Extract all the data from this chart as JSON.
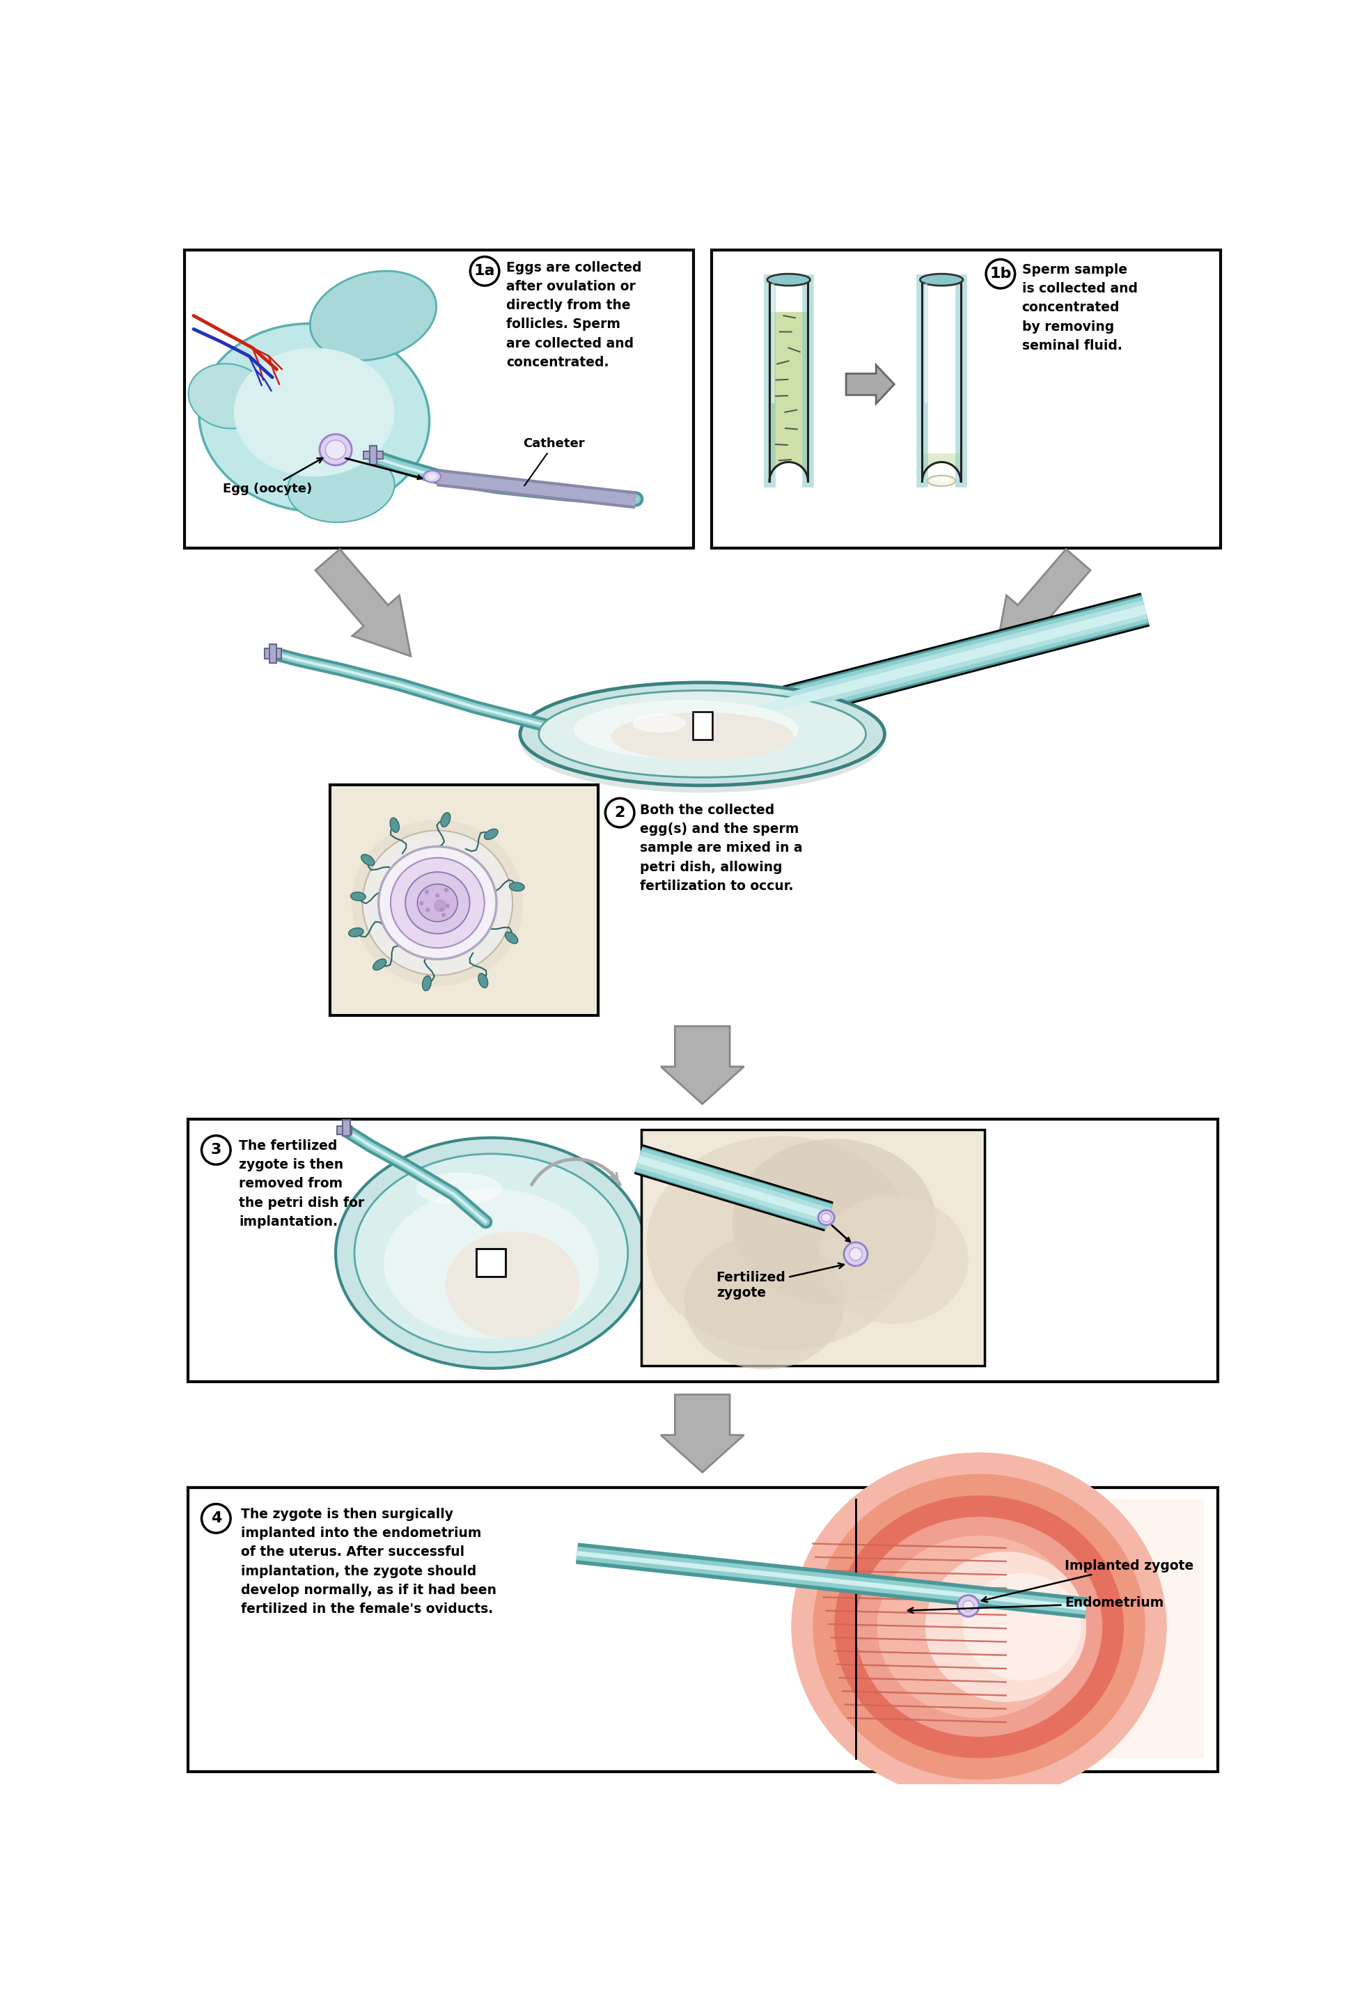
{
  "bg_color": "#ffffff",
  "panel1a_text": "Eggs are collected\nafter ovulation or\ndirectly from the\nfollicles. Sperm\nare collected and\nconcentrated.",
  "panel1b_text": "Sperm sample\nis collected and\nconcentrated\nby removing\nseminal fluid.",
  "panel2_text": "Both the collected\negg(s) and the sperm\nsample are mixed in a\npetri dish, allowing\nfertilization to occur.",
  "panel3_text": "The fertilized\nzygote is then\nremoved from\nthe petri dish for\nimplantation.",
  "panel4_text": "The zygote is then surgically\nimplanted into the endometrium\nof the uterus. After successful\nimplantation, the zygote should\ndevelop normally, as if it had been\nfertilized in the female's oviducts.",
  "label_egg": "Egg (oocyte)",
  "label_catheter": "Catheter",
  "label_fert_zygote": "Fertilized\nzygote",
  "label_impl_zygote": "Implanted zygote",
  "label_endometrium": "Endometrium",
  "teal1": "#8ecece",
  "teal2": "#b0e0e0",
  "teal3": "#d0f0f0",
  "teal_dark": "#4a9898",
  "ovary_outer": "#a8d8d8",
  "ovary_mid": "#80c8c8",
  "blood_red": "#cc2211",
  "blood_blue": "#2233bb",
  "gray_arr": "#b0b0b0",
  "gray_arr_edge": "#888888",
  "tube_fill_left": "#d0e8b8",
  "tube_fill_right": "#e8f0e0",
  "beige_bg": "#f0e8d8",
  "pink1": "#f5b8a8",
  "pink2": "#ee9880",
  "pink3": "#e07060",
  "pink_inner": "#fce0d8"
}
